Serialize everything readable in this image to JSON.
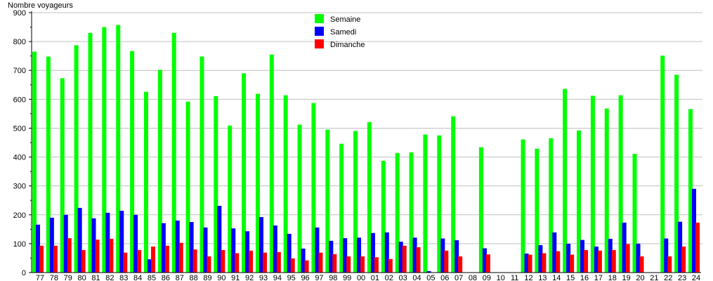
{
  "chart_data": {
    "type": "bar",
    "title": "",
    "ylabel": "Nombre voyageurs",
    "xlabel": "",
    "ylim": [
      0,
      900
    ],
    "yticks": [
      0,
      100,
      200,
      300,
      400,
      500,
      600,
      700,
      800,
      900
    ],
    "grid": true,
    "legend_position": "top-center",
    "categories": [
      "77",
      "78",
      "79",
      "80",
      "81",
      "82",
      "83",
      "84",
      "85",
      "86",
      "87",
      "88",
      "89",
      "90",
      "91",
      "92",
      "93",
      "94",
      "95",
      "96",
      "97",
      "98",
      "99",
      "00",
      "01",
      "02",
      "03",
      "04",
      "05",
      "06",
      "07",
      "08",
      "09",
      "10",
      "11",
      "12",
      "13",
      "14",
      "15",
      "16",
      "17",
      "18",
      "19",
      "20",
      "21",
      "22",
      "23",
      "24"
    ],
    "series": [
      {
        "name": "Semaine",
        "color": "#00ff00",
        "values": [
          765,
          748,
          673,
          787,
          830,
          850,
          857,
          767,
          626,
          702,
          830,
          592,
          748,
          611,
          509,
          690,
          619,
          755,
          614,
          512,
          587,
          495,
          446,
          490,
          521,
          387,
          414,
          416,
          478,
          475,
          541,
          0,
          434,
          0,
          0,
          461,
          429,
          465,
          636,
          492,
          612,
          568,
          614,
          411,
          0,
          751,
          685,
          566
        ]
      },
      {
        "name": "Samedi",
        "color": "#0000ff",
        "values": [
          166,
          190,
          200,
          224,
          188,
          207,
          214,
          200,
          46,
          171,
          180,
          175,
          156,
          231,
          153,
          143,
          192,
          163,
          134,
          83,
          156,
          110,
          119,
          121,
          137,
          139,
          107,
          121,
          5,
          118,
          112,
          0,
          84,
          0,
          0,
          66,
          95,
          139,
          100,
          113,
          90,
          117,
          173,
          100,
          0,
          118,
          176,
          290
        ]
      },
      {
        "name": "Dimanche",
        "color": "#ff0000",
        "values": [
          93,
          93,
          119,
          78,
          114,
          117,
          69,
          78,
          90,
          93,
          103,
          80,
          56,
          78,
          67,
          76,
          69,
          71,
          49,
          42,
          69,
          64,
          56,
          56,
          53,
          47,
          93,
          88,
          0,
          76,
          56,
          0,
          63,
          0,
          0,
          62,
          67,
          74,
          62,
          78,
          76,
          78,
          99,
          56,
          0,
          56,
          90,
          173
        ]
      }
    ]
  }
}
